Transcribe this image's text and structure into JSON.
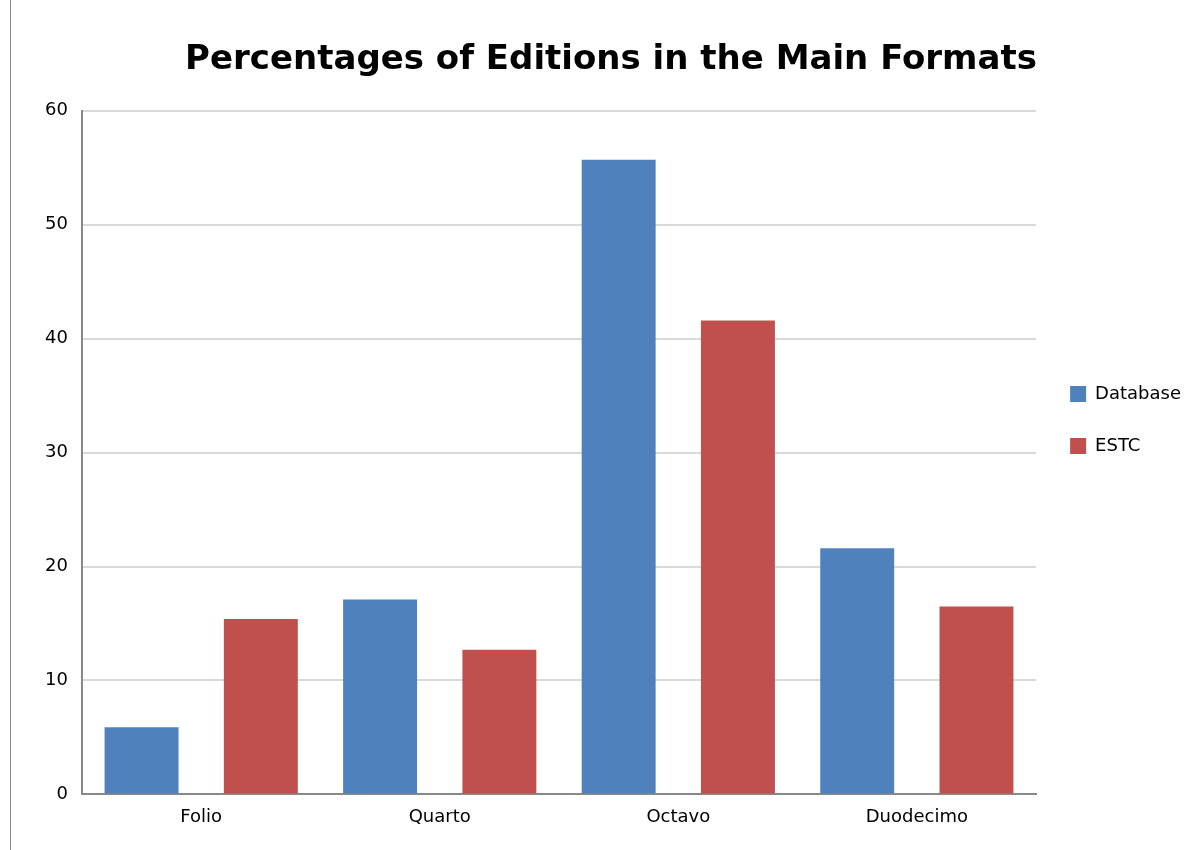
{
  "chart_data": {
    "type": "bar",
    "title": "Percentages of Editions in the Main Formats",
    "categories": [
      "Folio",
      "Quarto",
      "Octavo",
      "Duodecimo"
    ],
    "series": [
      {
        "name": "Database",
        "color": "#4f81bd",
        "values": [
          5.9,
          17.1,
          55.7,
          21.6
        ]
      },
      {
        "name": "ESTC",
        "color": "#c0504d",
        "values": [
          15.4,
          12.7,
          41.6,
          16.5
        ]
      }
    ],
    "ylim": [
      0,
      60
    ],
    "yticks": [
      0,
      10,
      20,
      30,
      40,
      50,
      60
    ],
    "grid": "y",
    "legend": "right"
  }
}
